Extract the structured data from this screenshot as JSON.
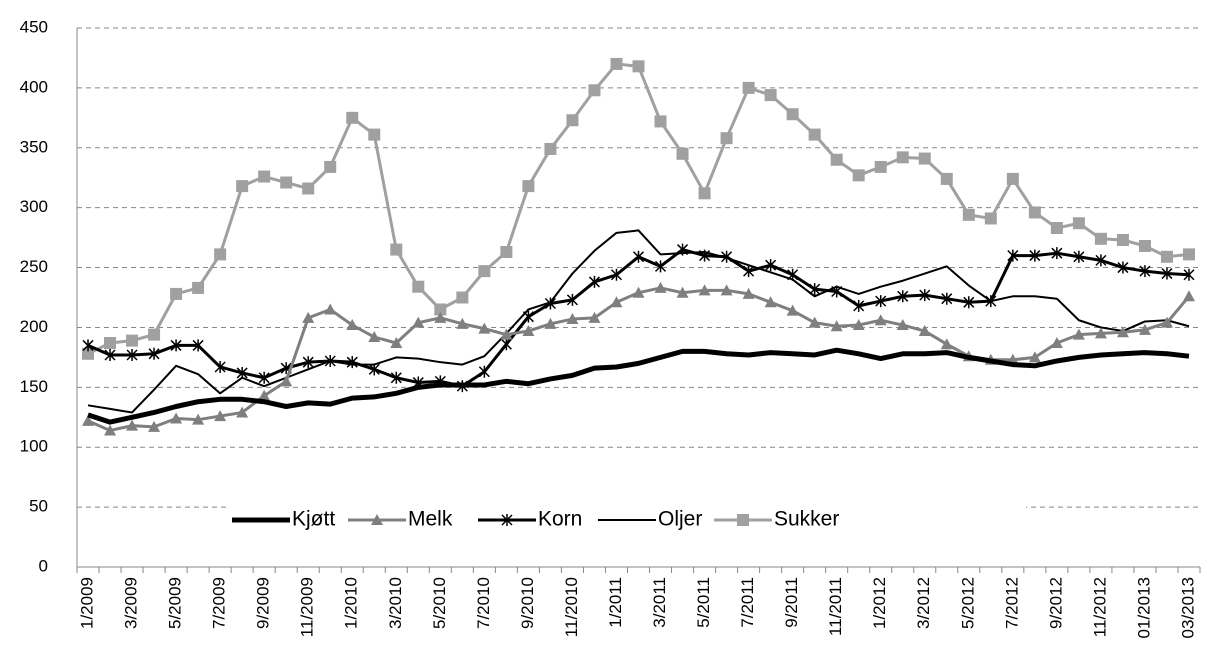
{
  "chart_data": {
    "type": "line",
    "categories": [
      "1/2009",
      null,
      "3/2009",
      null,
      "5/2009",
      null,
      "7/2009",
      null,
      "9/2009",
      null,
      "11/2009",
      null,
      "1/2010",
      null,
      "3/2010",
      null,
      "5/2010",
      null,
      "7/2010",
      null,
      "9/2010",
      null,
      "11/2010",
      null,
      "1/2011",
      null,
      "3/2011",
      null,
      "5/2011",
      null,
      "7/2011",
      null,
      "9/2011",
      null,
      "11/2011",
      null,
      "1/2012",
      null,
      "3/2012",
      null,
      "5/2012",
      null,
      "7/2012",
      null,
      "9/2012",
      null,
      "11/2012",
      null,
      "01/2013",
      null,
      "03/2013"
    ],
    "series": [
      {
        "name": "Kjøtt",
        "color": "#000000",
        "marker": "none",
        "values": [
          127,
          121,
          125,
          129,
          134,
          138,
          140,
          140,
          138,
          134,
          137,
          136,
          141,
          142,
          145,
          150,
          152,
          152,
          152,
          155,
          153,
          157,
          160,
          166,
          167,
          170,
          175,
          180,
          180,
          178,
          177,
          179,
          178,
          177,
          181,
          178,
          174,
          178,
          178,
          179,
          175,
          172,
          169,
          168,
          172,
          175,
          177,
          178,
          179,
          178,
          176
        ]
      },
      {
        "name": "Melk",
        "color": "#7f7f7f",
        "marker": "triangle",
        "values": [
          122,
          114,
          118,
          117,
          124,
          123,
          126,
          129,
          143,
          155,
          208,
          215,
          202,
          192,
          187,
          204,
          208,
          203,
          199,
          194,
          197,
          203,
          207,
          208,
          221,
          229,
          233,
          229,
          231,
          231,
          228,
          221,
          214,
          204,
          201,
          202,
          206,
          202,
          197,
          186,
          176,
          173,
          173,
          175,
          187,
          194,
          195,
          196,
          198,
          204,
          226
        ]
      },
      {
        "name": "Korn",
        "color": "#000000",
        "marker": "star",
        "values": [
          185,
          177,
          177,
          178,
          185,
          185,
          167,
          162,
          158,
          166,
          171,
          172,
          171,
          165,
          158,
          154,
          155,
          151,
          163,
          186,
          209,
          220,
          223,
          238,
          244,
          259,
          251,
          265,
          260,
          259,
          247,
          252,
          244,
          232,
          230,
          218,
          222,
          226,
          227,
          224,
          221,
          222,
          260,
          260,
          262,
          259,
          256,
          250,
          247,
          245,
          244
        ]
      },
      {
        "name": "Oljer",
        "color": "#000000",
        "marker": "none",
        "values": [
          135,
          132,
          129,
          148,
          168,
          161,
          145,
          158,
          151,
          158,
          165,
          172,
          169,
          169,
          175,
          174,
          171,
          169,
          176,
          195,
          215,
          221,
          245,
          264,
          279,
          281,
          261,
          262,
          263,
          258,
          252,
          246,
          240,
          226,
          234,
          228,
          234,
          239,
          245,
          251,
          235,
          222,
          226,
          226,
          224,
          206,
          200,
          197,
          205,
          206,
          201
        ]
      },
      {
        "name": "Sukker",
        "color": "#a0a0a0",
        "marker": "square",
        "values": [
          178,
          187,
          189,
          194,
          228,
          233,
          261,
          318,
          326,
          321,
          316,
          334,
          375,
          361,
          265,
          234,
          215,
          225,
          247,
          263,
          318,
          349,
          373,
          398,
          420,
          418,
          372,
          345,
          312,
          358,
          400,
          394,
          378,
          361,
          340,
          327,
          334,
          342,
          341,
          324,
          294,
          291,
          324,
          296,
          283,
          287,
          274,
          273,
          268,
          259,
          261
        ]
      }
    ],
    "ylim": [
      0,
      450
    ],
    "yticks": [
      0,
      50,
      100,
      150,
      200,
      250,
      300,
      350,
      400,
      450
    ],
    "grid": true,
    "legend": "bottom"
  }
}
